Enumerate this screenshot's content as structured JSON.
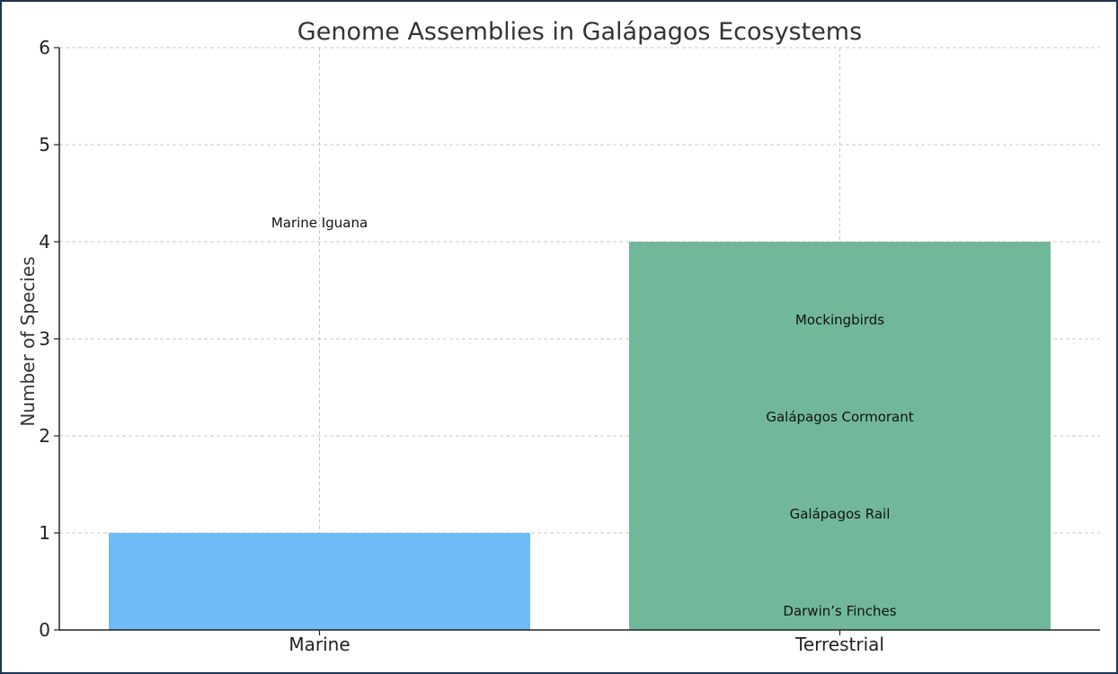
{
  "chart_data": {
    "type": "bar",
    "title": "Genome Assemblies in Galápagos Ecosystems",
    "xlabel": "",
    "ylabel": "Number of Species",
    "categories": [
      "Marine",
      "Terrestrial"
    ],
    "values": [
      1,
      4
    ],
    "ylim": [
      0,
      6
    ],
    "yticks": [
      0,
      1,
      2,
      3,
      4,
      5,
      6
    ],
    "grid": true,
    "colors": [
      "#6fbbf5",
      "#71b89b"
    ],
    "annotations": [
      {
        "category": "Marine",
        "y": 4.15,
        "text": "Marine Iguana"
      },
      {
        "category": "Terrestrial",
        "y": 3.15,
        "text": "Mockingbirds"
      },
      {
        "category": "Terrestrial",
        "y": 2.15,
        "text": "Galápagos Cormorant"
      },
      {
        "category": "Terrestrial",
        "y": 1.15,
        "text": "Galápagos Rail"
      },
      {
        "category": "Terrestrial",
        "y": 0.15,
        "text": "Darwin’s Finches"
      }
    ]
  }
}
